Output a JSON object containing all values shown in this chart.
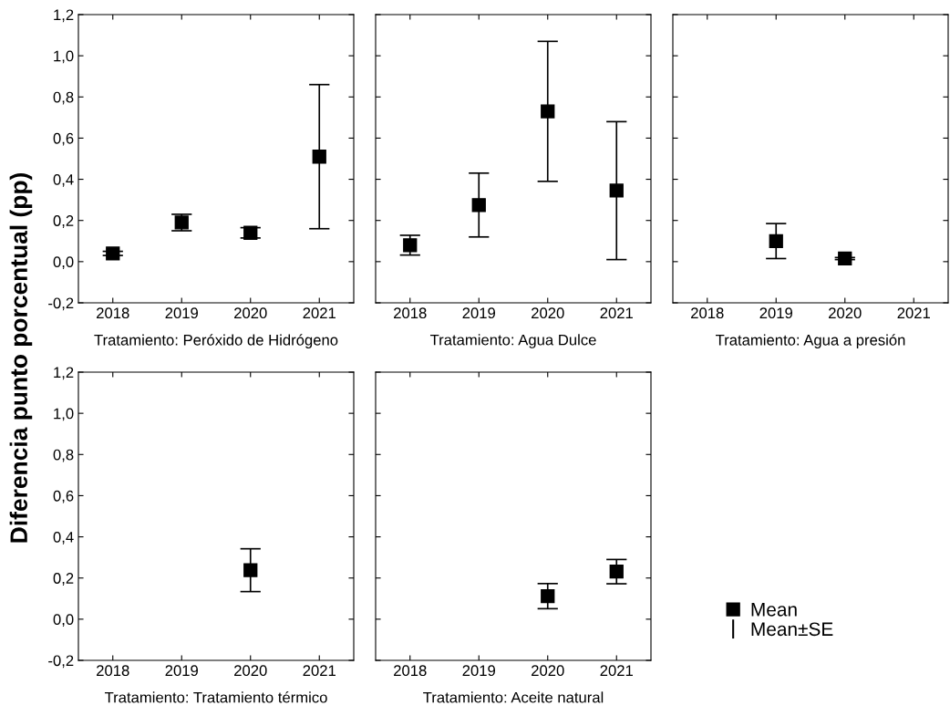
{
  "chart_data": [
    {
      "type": "scatter",
      "xlabel": "Tratamiento: Peróxido de Hidrógeno",
      "ylabel": "Diferencia punto porcentual (pp)",
      "categories": [
        "2018",
        "2019",
        "2020",
        "2021"
      ],
      "ylim": [
        -0.2,
        1.2
      ],
      "yticks": [
        {
          "value": -0.2,
          "label": "-0,2"
        },
        {
          "value": 0,
          "label": "0,0"
        },
        {
          "value": 0.2,
          "label": "0,2"
        },
        {
          "value": 0.4,
          "label": "0,4"
        },
        {
          "value": 0.6,
          "label": "0,6"
        },
        {
          "value": 0.8,
          "label": "0,8"
        },
        {
          "value": 1.0,
          "label": "1,0"
        },
        {
          "value": 1.2,
          "label": "1,2"
        }
      ],
      "marker": "square",
      "grid": false,
      "series": [
        {
          "color": "#000000",
          "values": [
            0.04,
            0.19,
            0.14,
            0.51
          ],
          "errors": [
            0.01,
            0.04,
            0.025,
            0.35
          ]
        }
      ]
    },
    {
      "type": "scatter",
      "xlabel": "Tratamiento: Agua Dulce",
      "categories": [
        "2018",
        "2019",
        "2020",
        "2021"
      ],
      "ylim": [
        -0.2,
        1.2
      ],
      "yticks": [
        -0.2,
        0,
        0.2,
        0.4,
        0.6,
        0.8,
        1.0,
        1.2
      ],
      "tick_labels": "x",
      "marker": "square",
      "grid": false,
      "series": [
        {
          "color": "#000000",
          "values": [
            0.08,
            0.275,
            0.73,
            0.345
          ],
          "errors": [
            0.048,
            0.155,
            0.34,
            0.335
          ]
        }
      ]
    },
    {
      "type": "scatter",
      "xlabel": "Tratamiento: Agua a presión",
      "categories": [
        "2018",
        "2019",
        "2020",
        "2021"
      ],
      "ylim": [
        -0.2,
        1.2
      ],
      "yticks": [
        -0.2,
        0,
        0.2,
        0.4,
        0.6,
        0.8,
        1.0,
        1.2
      ],
      "tick_labels": "x",
      "marker": "square",
      "grid": false,
      "series": [
        {
          "color": "#000000",
          "values": [
            null,
            0.1,
            0.015,
            null
          ],
          "errors": [
            null,
            0.085,
            0.005,
            null
          ]
        }
      ]
    },
    {
      "type": "scatter",
      "xlabel": "Tratamiento: Tratamiento térmico",
      "categories": [
        "2018",
        "2019",
        "2020",
        "2021"
      ],
      "ylim": [
        -0.2,
        1.2
      ],
      "yticks": [
        {
          "value": -0.2,
          "label": "-0,2"
        },
        {
          "value": 0,
          "label": "0,0"
        },
        {
          "value": 0.2,
          "label": "0,2"
        },
        {
          "value": 0.4,
          "label": "0,4"
        },
        {
          "value": 0.6,
          "label": "0,6"
        },
        {
          "value": 0.8,
          "label": "0,8"
        },
        {
          "value": 1.0,
          "label": "1,0"
        },
        {
          "value": 1.2,
          "label": "1,2"
        }
      ],
      "marker": "square",
      "grid": false,
      "series": [
        {
          "color": "#000000",
          "values": [
            null,
            null,
            0.238,
            null
          ],
          "errors": [
            null,
            null,
            0.104,
            null
          ]
        }
      ]
    },
    {
      "type": "scatter",
      "xlabel": "Tratamiento: Aceite natural",
      "categories": [
        "2018",
        "2019",
        "2020",
        "2021"
      ],
      "ylim": [
        -0.2,
        1.2
      ],
      "yticks": [
        -0.2,
        0,
        0.2,
        0.4,
        0.6,
        0.8,
        1.0,
        1.2
      ],
      "tick_labels": "x",
      "marker": "square",
      "grid": false,
      "legend": "right",
      "annotations": [
        "Mean±SE"
      ],
      "series": [
        {
          "name": "Mean",
          "color": "#000000",
          "values": [
            null,
            null,
            0.112,
            0.231
          ],
          "errors": [
            null,
            null,
            0.061,
            0.059
          ]
        }
      ]
    }
  ]
}
